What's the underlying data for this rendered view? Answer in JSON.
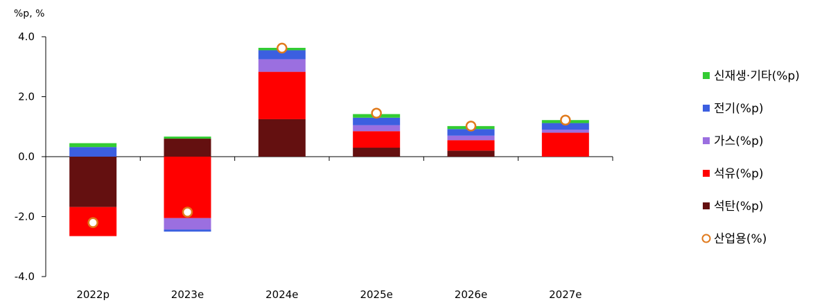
{
  "chart_data": {
    "type": "bar",
    "stacked": true,
    "unit_label": "%p, %",
    "categories": [
      "2022p",
      "2023e",
      "2024e",
      "2025e",
      "2026e",
      "2027e"
    ],
    "ylim": [
      -4.0,
      4.0
    ],
    "yticks": [
      "4.0",
      "2.0",
      "0.0",
      "-2.0",
      "-4.0"
    ],
    "ytick_values": [
      4,
      2,
      0,
      -2,
      -4
    ],
    "grid": false,
    "legend_position": "right",
    "series": [
      {
        "name": "석탄(%p)",
        "color": "#641010",
        "values": [
          -1.68,
          0.6,
          1.25,
          0.3,
          0.2,
          0.0
        ]
      },
      {
        "name": "석유(%p)",
        "color": "#ff0000",
        "values": [
          -0.97,
          -2.05,
          1.58,
          0.55,
          0.35,
          0.8
        ]
      },
      {
        "name": "가스(%p)",
        "color": "#9b6fe0",
        "values": [
          0.0,
          -0.38,
          0.42,
          0.2,
          0.15,
          0.1
        ]
      },
      {
        "name": "전기(%p)",
        "color": "#3c5fe0",
        "values": [
          0.32,
          -0.07,
          0.3,
          0.25,
          0.22,
          0.22
        ]
      },
      {
        "name": "신재생·기타(%p)",
        "color": "#33cc33",
        "values": [
          0.13,
          0.07,
          0.08,
          0.12,
          0.1,
          0.1
        ]
      }
    ],
    "line_series": {
      "name": "산업용(%)",
      "color": "#e07a1c",
      "values": [
        -2.2,
        -1.85,
        3.62,
        1.45,
        1.02,
        1.22
      ]
    },
    "legend_order": [
      "신재생·기타(%p)",
      "전기(%p)",
      "가스(%p)",
      "석유(%p)",
      "석탄(%p)",
      "산업용(%)"
    ]
  }
}
